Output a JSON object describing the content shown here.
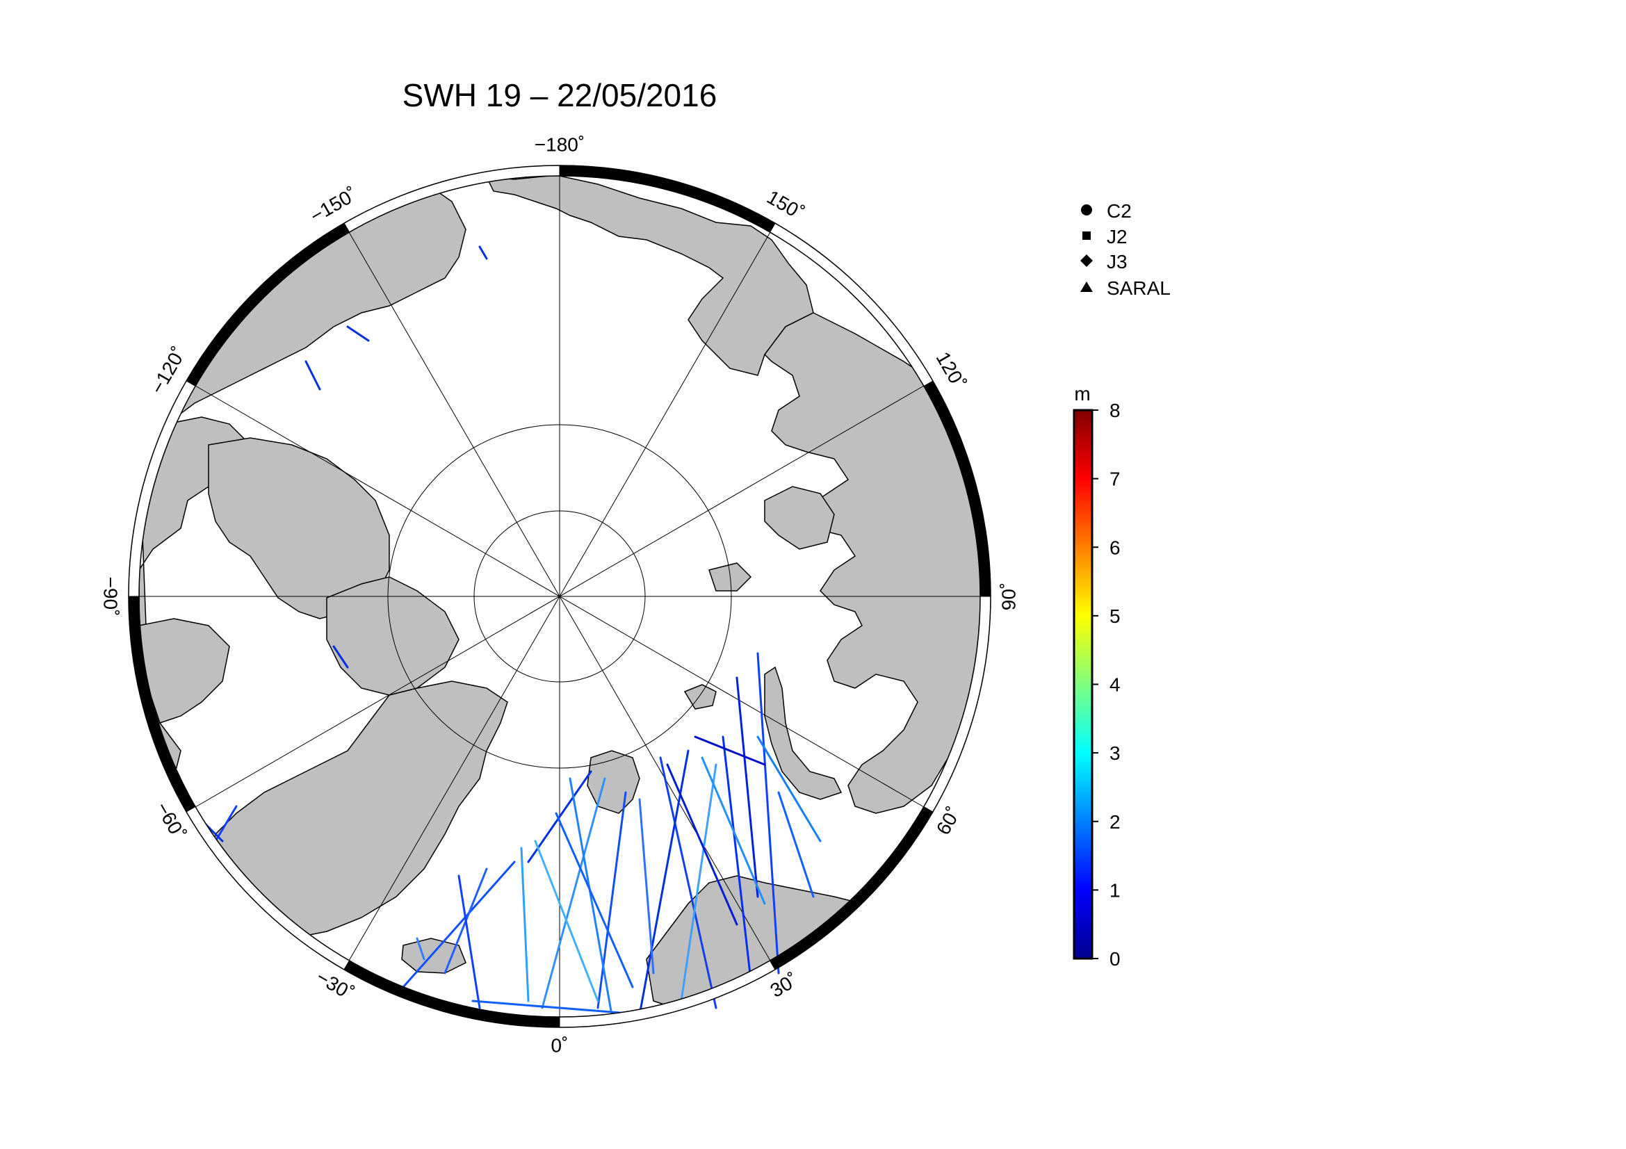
{
  "title": "SWH 19 – 22/05/2016",
  "map": {
    "projection": "north-polar-stereographic",
    "graticule_labels": [
      {
        "lon": 180,
        "text": "−180˚"
      },
      {
        "lon": 150,
        "text": "150˚"
      },
      {
        "lon": 120,
        "text": "120˚"
      },
      {
        "lon": 90,
        "text": "90˚"
      },
      {
        "lon": 60,
        "text": "60˚"
      },
      {
        "lon": 30,
        "text": "30˚"
      },
      {
        "lon": 0,
        "text": "0˚"
      },
      {
        "lon": -30,
        "text": "−30˚"
      },
      {
        "lon": -60,
        "text": "−60˚"
      },
      {
        "lon": -90,
        "text": "−90˚"
      },
      {
        "lon": -120,
        "text": "−120˚"
      },
      {
        "lon": -150,
        "text": "−150˚"
      }
    ],
    "colors": {
      "land": "#bfbfbf",
      "ocean": "#ffffff",
      "frame_dark": "#000000",
      "frame_light": "#ffffff"
    }
  },
  "legend": {
    "items": [
      {
        "label": "C2",
        "symbol": "circle-icon"
      },
      {
        "label": "J2",
        "symbol": "square-icon"
      },
      {
        "label": "J3",
        "symbol": "diamond-icon"
      },
      {
        "label": "SARAL",
        "symbol": "triangle-icon"
      }
    ]
  },
  "colorbar": {
    "unit": "m",
    "min": 0,
    "max": 8,
    "ticks": [
      "0",
      "1",
      "2",
      "3",
      "4",
      "5",
      "6",
      "7",
      "8"
    ],
    "colormap": [
      "#00008f",
      "#0000ff",
      "#0080ff",
      "#00ffff",
      "#80ff80",
      "#ffff00",
      "#ff8000",
      "#ff0000",
      "#800000"
    ]
  }
}
